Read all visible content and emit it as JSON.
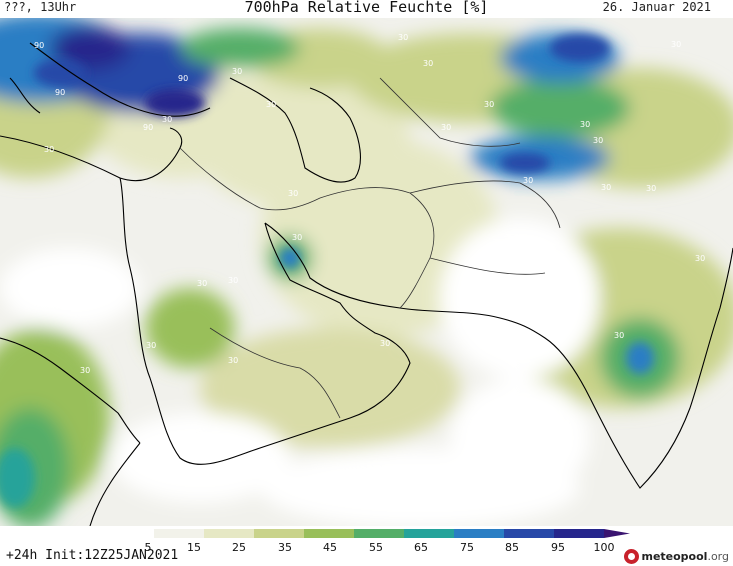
{
  "header": {
    "left": "???, 13Uhr",
    "title": "700hPa Relative Feuchte [%]",
    "right": "26. Januar 2021"
  },
  "footer": {
    "forecast": "+24h Init:12Z25JAN2021",
    "logo_main": "meteopool",
    "logo_suffix": ".org"
  },
  "legend": {
    "labels": [
      "5",
      "15",
      "25",
      "35",
      "45",
      "55",
      "65",
      "75",
      "85",
      "95",
      "100"
    ],
    "colors": [
      "#ffffff",
      "#f2f2ea",
      "#e6e8c4",
      "#c9d38a",
      "#99bf5a",
      "#54ae68",
      "#25a39a",
      "#2a7ec4",
      "#2748a8",
      "#26268c",
      "#3a1470"
    ]
  },
  "contour_labels": [
    "90",
    "90",
    "90",
    "90",
    "30",
    "30",
    "30",
    "30",
    "30",
    "30",
    "30",
    "30",
    "30",
    "30",
    "30",
    "30",
    "30",
    "30",
    "30",
    "30",
    "30",
    "30",
    "30",
    "30",
    "30",
    "30",
    "30",
    "30"
  ],
  "land_color": "#f1f1ec",
  "coast_color": "#000000"
}
